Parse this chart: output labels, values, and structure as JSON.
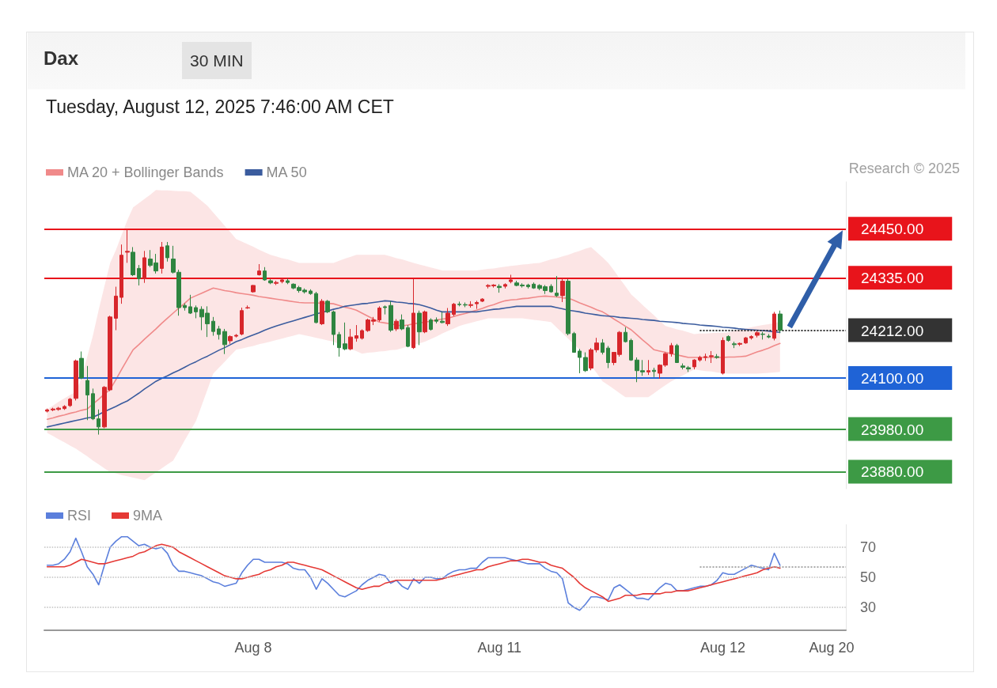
{
  "chart_data": [
    {
      "type": "candlestick",
      "title": "Dax",
      "subtitle": "Tuesday, August 12, 2025 7:46:00 AM CET",
      "annotations": [
        "30 MIN",
        "Research © 2025"
      ],
      "categories": [
        null,
        null,
        null,
        null,
        null,
        null,
        null,
        null,
        null,
        null,
        null,
        null,
        null,
        null,
        null,
        null,
        null,
        null,
        null,
        null,
        null,
        null,
        null,
        null,
        null,
        null,
        null,
        null,
        null,
        null,
        null,
        null,
        null,
        null,
        null,
        null,
        null,
        null,
        null,
        null,
        null,
        null,
        null,
        null,
        null,
        null,
        null,
        null,
        null,
        null,
        null,
        null,
        null,
        null,
        null,
        null,
        null,
        null,
        null,
        null,
        null,
        null,
        null,
        null,
        null,
        null,
        null,
        null,
        null,
        null,
        null,
        null,
        null,
        null,
        null,
        null,
        null,
        null,
        null,
        null,
        null,
        null,
        null,
        null,
        null,
        null,
        null,
        null,
        null,
        null,
        null,
        null,
        null,
        null,
        null,
        null,
        null,
        null,
        null,
        null,
        null,
        null,
        null,
        null,
        null,
        null,
        null,
        null,
        null,
        null,
        null,
        null,
        null,
        null,
        null,
        null,
        null,
        null,
        null,
        null,
        null,
        null,
        null,
        null,
        null,
        null,
        null,
        null,
        null
      ],
      "ylim": [
        23840,
        24560
      ],
      "yticks": [
        {
          "value": 24450,
          "label": "24450.00"
        },
        {
          "value": 24335,
          "label": "24335.00"
        },
        {
          "value": 24212,
          "label": "24212.00"
        },
        {
          "value": 24100,
          "label": "24100.00"
        },
        {
          "value": 23980,
          "label": "23980.00"
        },
        {
          "value": 23880,
          "label": "23880.00"
        }
      ],
      "tick_labels": "y",
      "grid": false,
      "legend": "top left",
      "ref_lines": [
        {
          "axis": "y",
          "value": 24450,
          "color": "#e8141b"
        },
        {
          "axis": "y",
          "value": 24335,
          "color": "#e8141b"
        },
        {
          "axis": "y",
          "value": 24212,
          "color": "#333333",
          "line_style": "dotted"
        },
        {
          "axis": "y",
          "value": 24100,
          "color": "#1f63d6"
        },
        {
          "axis": "y",
          "value": 23980,
          "color": "#3d9a45"
        },
        {
          "axis": "y",
          "value": 23880,
          "color": "#3d9a45"
        }
      ],
      "series": [
        {
          "type": "candlestick",
          "ohlc": [
            [
              24022,
              24028,
              24019,
              24025
            ],
            [
              24025,
              24030,
              24022,
              24027
            ],
            [
              24026,
              24032,
              24023,
              24029
            ],
            [
              24028,
              24036,
              24025,
              24033
            ],
            [
              24035,
              24053,
              24032,
              24050
            ],
            [
              24052,
              24143,
              24047,
              24140
            ],
            [
              24146,
              24162,
              24097,
              24100
            ],
            [
              24094,
              24128,
              24001,
              24060
            ],
            [
              24063,
              24075,
              24001,
              24004
            ],
            [
              24004,
              24026,
              23967,
              23985
            ],
            [
              23985,
              24081,
              23982,
              24078
            ],
            [
              24072,
              24246,
              24069,
              24243
            ],
            [
              24240,
              24314,
              24212,
              24292
            ],
            [
              24289,
              24413,
              24274,
              24388
            ],
            [
              24395,
              24450,
              24370,
              24397
            ],
            [
              24395,
              24407,
              24339,
              24342
            ],
            [
              24357,
              24365,
              24317,
              24333
            ],
            [
              24333,
              24398,
              24323,
              24382
            ],
            [
              24379,
              24400,
              24360,
              24364
            ],
            [
              24370,
              24391,
              24345,
              24351
            ],
            [
              24357,
              24419,
              24345,
              24407
            ],
            [
              24410,
              24419,
              24373,
              24382
            ],
            [
              24379,
              24410,
              24345,
              24348
            ],
            [
              24348,
              24354,
              24246,
              24265
            ],
            [
              24270,
              24275,
              24258,
              24265
            ],
            [
              24267,
              24295,
              24250,
              24252
            ],
            [
              24265,
              24270,
              24240,
              24255
            ],
            [
              24261,
              24268,
              24212,
              24243
            ],
            [
              24252,
              24268,
              24196,
              24227
            ],
            [
              24233,
              24243,
              24199,
              24209
            ],
            [
              24215,
              24222,
              24190,
              24202
            ],
            [
              24209,
              24215,
              24156,
              24178
            ],
            [
              24187,
              24200,
              24180,
              24197
            ],
            [
              24198,
              24203,
              24195,
              24200
            ],
            [
              24203,
              24265,
              24200,
              24258
            ],
            [
              24264,
              24270,
              24262,
              24265
            ],
            [
              24302,
              24318,
              24300,
              24317
            ],
            [
              24342,
              24367,
              24340,
              24351
            ],
            [
              24351,
              24360,
              24328,
              24330
            ],
            [
              24328,
              24332,
              24320,
              24323
            ],
            [
              24322,
              24328,
              24318,
              24324
            ],
            [
              24326,
              24333,
              24322,
              24330
            ],
            [
              24328,
              24333,
              24320,
              24324
            ],
            [
              24320,
              24322,
              24308,
              24311
            ],
            [
              24312,
              24316,
              24300,
              24305
            ],
            [
              24306,
              24310,
              24298,
              24302
            ],
            [
              24304,
              24308,
              24295,
              24298
            ],
            [
              24298,
              24302,
              24228,
              24230
            ],
            [
              24227,
              24285,
              24224,
              24280
            ],
            [
              24280,
              24283,
              24252,
              24255
            ],
            [
              24255,
              24258,
              24177,
              24202
            ],
            [
              24202,
              24208,
              24150,
              24171
            ],
            [
              24180,
              24230,
              24165,
              24168
            ],
            [
              24168,
              24215,
              24165,
              24196
            ],
            [
              24193,
              24224,
              24185,
              24199
            ],
            [
              24193,
              24214,
              24190,
              24211
            ],
            [
              24211,
              24239,
              24208,
              24236
            ],
            [
              24233,
              24243,
              24224,
              24236
            ],
            [
              24236,
              24268,
              24232,
              24264
            ],
            [
              24267,
              24270,
              24249,
              24265
            ],
            [
              24270,
              24280,
              24208,
              24212
            ],
            [
              24215,
              24238,
              24210,
              24233
            ],
            [
              24236,
              24249,
              24212,
              24215
            ],
            [
              24218,
              24224,
              24172,
              24174
            ],
            [
              24171,
              24332,
              24168,
              24252
            ],
            [
              24252,
              24258,
              24177,
              24208
            ],
            [
              24208,
              24258,
              24205,
              24255
            ],
            [
              24236,
              24240,
              24211,
              24214
            ],
            [
              24236,
              24242,
              24228,
              24233
            ],
            [
              24233,
              24255,
              24228,
              24230
            ],
            [
              24227,
              24264,
              24222,
              24252
            ],
            [
              24249,
              24276,
              24245,
              24273
            ],
            [
              24273,
              24279,
              24268,
              24272
            ],
            [
              24272,
              24277,
              24266,
              24271
            ],
            [
              24270,
              24280,
              24265,
              24272
            ],
            [
              24274,
              24281,
              24262,
              24277
            ],
            [
              24280,
              24287,
              24278,
              24285
            ],
            [
              24315,
              24320,
              24310,
              24317
            ],
            [
              24316,
              24320,
              24312,
              24318
            ],
            [
              24315,
              24320,
              24300,
              24312
            ],
            [
              24315,
              24322,
              24310,
              24319
            ],
            [
              24326,
              24342,
              24322,
              24330
            ],
            [
              24323,
              24328,
              24315,
              24317
            ],
            [
              24318,
              24322,
              24312,
              24316
            ],
            [
              24318,
              24321,
              24310,
              24314
            ],
            [
              24320,
              24324,
              24309,
              24311
            ],
            [
              24317,
              24320,
              24306,
              24310
            ],
            [
              24314,
              24318,
              24297,
              24305
            ],
            [
              24315,
              24320,
              24300,
              24302
            ],
            [
              24299,
              24339,
              24290,
              24293
            ],
            [
              24293,
              24334,
              24278,
              24327
            ],
            [
              24327,
              24332,
              24200,
              24204
            ],
            [
              24204,
              24208,
              24160,
              24160
            ],
            [
              24163,
              24168,
              24111,
              24148
            ],
            [
              24148,
              24160,
              24114,
              24117
            ],
            [
              24123,
              24170,
              24118,
              24166
            ],
            [
              24166,
              24194,
              24160,
              24182
            ],
            [
              24182,
              24191,
              24155,
              24160
            ],
            [
              24170,
              24175,
              24123,
              24136
            ],
            [
              24136,
              24160,
              24130,
              24160
            ],
            [
              24155,
              24210,
              24150,
              24207
            ],
            [
              24207,
              24219,
              24183,
              24185
            ],
            [
              24188,
              24192,
              24140,
              24142
            ],
            [
              24142,
              24148,
              24090,
              24117
            ],
            [
              24117,
              24142,
              24105,
              24114
            ],
            [
              24114,
              24142,
              24107,
              24117
            ],
            [
              24118,
              24124,
              24102,
              24115
            ],
            [
              24111,
              24132,
              24098,
              24130
            ],
            [
              24130,
              24160,
              24126,
              24157
            ],
            [
              24157,
              24182,
              24150,
              24176
            ],
            [
              24176,
              24180,
              24135,
              24136
            ],
            [
              24128,
              24134,
              24120,
              24125
            ],
            [
              24124,
              24128,
              24114,
              24121
            ],
            [
              24126,
              24144,
              24120,
              24142
            ],
            [
              24142,
              24152,
              24138,
              24148
            ],
            [
              24148,
              24157,
              24140,
              24150
            ],
            [
              24150,
              24163,
              24135,
              24152
            ],
            [
              24150,
              24156,
              24145,
              24148
            ],
            [
              24111,
              24195,
              24108,
              24188
            ],
            [
              24197,
              24200,
              24185,
              24188
            ],
            [
              24180,
              24185,
              24170,
              24178
            ],
            [
              24179,
              24183,
              24175,
              24181
            ],
            [
              24182,
              24196,
              24180,
              24194
            ],
            [
              24194,
              24200,
              24190,
              24197
            ],
            [
              24200,
              24210,
              24195,
              24206
            ],
            [
              24203,
              24208,
              24190,
              24202
            ],
            [
              24198,
              24203,
              24193,
              24196
            ],
            [
              24193,
              24255,
              24188,
              24250
            ],
            [
              24250,
              24258,
              24205,
              24212
            ]
          ],
          "colors": [
            "#d7262b",
            "#d7262b",
            "#d7262b",
            "#d7262b",
            "#d7262b",
            "#d7262b",
            "#2e8540",
            "#2e8540",
            "#2e8540",
            "#2e8540",
            "#d7262b",
            "#d7262b",
            "#d7262b",
            "#d7262b",
            "#d7262b",
            "#2e8540",
            "#2e8540",
            "#d7262b",
            "#2e8540",
            "#2e8540",
            "#d7262b",
            "#2e8540",
            "#2e8540",
            "#2e8540",
            "#2e8540",
            "#2e8540",
            "#2e8540",
            "#2e8540",
            "#2e8540",
            "#2e8540",
            "#2e8540",
            "#2e8540",
            "#d7262b",
            "#d7262b",
            "#d7262b",
            "#d7262b",
            "#d7262b",
            "#d7262b",
            "#2e8540",
            "#2e8540",
            "#d7262b",
            "#d7262b",
            "#2e8540",
            "#2e8540",
            "#2e8540",
            "#2e8540",
            "#2e8540",
            "#2e8540",
            "#d7262b",
            "#2e8540",
            "#2e8540",
            "#2e8540",
            "#2e8540",
            "#d7262b",
            "#d7262b",
            "#d7262b",
            "#d7262b",
            "#d7262b",
            "#d7262b",
            "#2e8540",
            "#2e8540",
            "#d7262b",
            "#2e8540",
            "#2e8540",
            "#d7262b",
            "#2e8540",
            "#d7262b",
            "#2e8540",
            "#2e8540",
            "#2e8540",
            "#d7262b",
            "#d7262b",
            "#2e8540",
            "#2e8540",
            "#d7262b",
            "#d7262b",
            "#d7262b",
            "#d7262b",
            "#d7262b",
            "#2e8540",
            "#d7262b",
            "#d7262b",
            "#2e8540",
            "#2e8540",
            "#2e8540",
            "#2e8540",
            "#2e8540",
            "#2e8540",
            "#2e8540",
            "#2e8540",
            "#d7262b",
            "#2e8540",
            "#2e8540",
            "#2e8540",
            "#2e8540",
            "#d7262b",
            "#d7262b",
            "#2e8540",
            "#2e8540",
            "#d7262b",
            "#d7262b",
            "#2e8540",
            "#2e8540",
            "#2e8540",
            "#2e8540",
            "#d7262b",
            "#2e8540",
            "#d7262b",
            "#d7262b",
            "#d7262b",
            "#2e8540",
            "#2e8540",
            "#2e8540",
            "#d7262b",
            "#d7262b",
            "#d7262b",
            "#d7262b",
            "#2e8540",
            "#d7262b",
            "#2e8540",
            "#2e8540",
            "#d7262b",
            "#d7262b",
            "#d7262b",
            "#d7262b",
            "#2e8540",
            "#2e8540",
            "#d7262b",
            "#2e8540"
          ]
        },
        {
          "type": "line",
          "name": "MA 20 + Bollinger Bands",
          "color": "#f08a8a",
          "values": [
            24003,
            24006,
            24010,
            24013,
            24017,
            24020,
            24024,
            24027,
            24039,
            24050,
            24062,
            24073,
            24096,
            24120,
            24143,
            24166,
            24178,
            24191,
            24203,
            24215,
            24228,
            24240,
            24252,
            24264,
            24275,
            24287,
            24293,
            24299,
            24305,
            24311,
            24308,
            24305,
            24303,
            24300,
            24298,
            24296,
            24294,
            24291,
            24289,
            24287,
            24285,
            24283,
            24281,
            24279,
            24277,
            24276,
            24276,
            24276,
            24275,
            24275,
            24274,
            24270,
            24266,
            24263,
            24259,
            24252,
            24245,
            24238,
            24231,
            24229,
            24227,
            24224,
            24222,
            24224,
            24227,
            24229,
            24231,
            24233,
            24236,
            24238,
            24240,
            24244,
            24248,
            24251,
            24255,
            24259,
            24263,
            24268,
            24272,
            24277,
            24281,
            24283,
            24284,
            24286,
            24287,
            24289,
            24291,
            24292,
            24291,
            24290,
            24288,
            24287,
            24282,
            24276,
            24271,
            24266,
            24260,
            24255,
            24247,
            24238,
            24230,
            24221,
            24213,
            24201,
            24189,
            24178,
            24166,
            24163,
            24160,
            24157,
            24154,
            24151,
            24148,
            24148,
            24148,
            24148,
            24148,
            24148,
            24148,
            24149,
            24149,
            24150,
            24151,
            24156,
            24161,
            24165,
            24170,
            24176,
            24181
          ],
          "upper": [
            24027,
            24035,
            24044,
            24052,
            24060,
            24068,
            24100,
            24150,
            24200,
            24260,
            24315,
            24370,
            24400,
            24435,
            24470,
            24500,
            24510,
            24520,
            24530,
            24541,
            24540,
            24540,
            24539,
            24538,
            24538,
            24537,
            24526,
            24515,
            24504,
            24488,
            24473,
            24457,
            24442,
            24426,
            24420,
            24414,
            24408,
            24401,
            24395,
            24389,
            24385,
            24381,
            24378,
            24374,
            24370,
            24370,
            24370,
            24370,
            24370,
            24370,
            24370,
            24375,
            24380,
            24384,
            24389,
            24389,
            24389,
            24389,
            24389,
            24389,
            24385,
            24381,
            24378,
            24374,
            24370,
            24366,
            24363,
            24359,
            24356,
            24352,
            24352,
            24352,
            24352,
            24352,
            24352,
            24352,
            24354,
            24356,
            24357,
            24359,
            24361,
            24363,
            24364,
            24366,
            24367,
            24369,
            24370,
            24374,
            24378,
            24381,
            24385,
            24389,
            24394,
            24398,
            24403,
            24407,
            24395,
            24383,
            24370,
            24352,
            24333,
            24315,
            24296,
            24284,
            24271,
            24259,
            24247,
            24234,
            24222,
            24218,
            24214,
            24211,
            24207,
            24203,
            24204,
            24204,
            24205,
            24206,
            24206,
            24207,
            24210,
            24213,
            24216,
            24219,
            24222,
            24224,
            24226,
            24229,
            24231
          ],
          "lower": [
            23971,
            23964,
            23956,
            23949,
            23941,
            23934,
            23925,
            23916,
            23906,
            23897,
            23888,
            23879,
            23876,
            23872,
            23869,
            23866,
            23863,
            23860,
            23869,
            23878,
            23888,
            23897,
            23906,
            23929,
            23953,
            23976,
            23999,
            24036,
            24073,
            24110,
            24124,
            24138,
            24152,
            24166,
            24169,
            24172,
            24175,
            24179,
            24182,
            24185,
            24189,
            24192,
            24196,
            24199,
            24203,
            24200,
            24197,
            24194,
            24191,
            24188,
            24185,
            24179,
            24174,
            24168,
            24163,
            24157,
            24159,
            24160,
            24162,
            24163,
            24165,
            24166,
            24170,
            24174,
            24177,
            24181,
            24185,
            24191,
            24197,
            24204,
            24210,
            24216,
            24222,
            24226,
            24229,
            24233,
            24236,
            24240,
            24240,
            24240,
            24240,
            24240,
            24240,
            24240,
            24238,
            24236,
            24235,
            24233,
            24231,
            24218,
            24205,
            24192,
            24179,
            24166,
            24148,
            24129,
            24111,
            24092,
            24083,
            24074,
            24064,
            24055,
            24055,
            24055,
            24055,
            24055,
            24064,
            24074,
            24083,
            24092,
            24099,
            24106,
            24113,
            24120,
            24118,
            24116,
            24115,
            24113,
            24111,
            24110,
            24110,
            24110,
            24110,
            24110,
            24110,
            24111,
            24112,
            24113,
            24114
          ]
        },
        {
          "type": "line",
          "name": "MA 50",
          "color": "#3b5c9e",
          "values": [
            23985,
            23988,
            23991,
            23994,
            23997,
            24000,
            24003,
            24006,
            24008,
            24014,
            24021,
            24027,
            24033,
            24040,
            24046,
            24055,
            24064,
            24074,
            24083,
            24092,
            24099,
            24105,
            24112,
            24118,
            24125,
            24132,
            24138,
            24145,
            24151,
            24158,
            24165,
            24171,
            24178,
            24185,
            24190,
            24196,
            24201,
            24206,
            24212,
            24217,
            24222,
            24226,
            24230,
            24234,
            24238,
            24242,
            24246,
            24250,
            24254,
            24257,
            24261,
            24264,
            24268,
            24270,
            24272,
            24274,
            24275,
            24277,
            24279,
            24281,
            24280,
            24278,
            24277,
            24275,
            24274,
            24272,
            24268,
            24264,
            24259,
            24255,
            24255,
            24255,
            24255,
            24255,
            24255,
            24255,
            24257,
            24259,
            24261,
            24262,
            24264,
            24266,
            24268,
            24268,
            24268,
            24268,
            24268,
            24268,
            24268,
            24265,
            24262,
            24259,
            24257,
            24255,
            24252,
            24250,
            24248,
            24246,
            24245,
            24244,
            24242,
            24241,
            24240,
            24239,
            24237,
            24236,
            24235,
            24233,
            24232,
            24231,
            24230,
            24228,
            24227,
            24226,
            24224,
            24223,
            24222,
            24221,
            24219,
            24218,
            24217,
            24215,
            24214,
            24213,
            24212,
            24211,
            24210,
            24208,
            24207
          ]
        }
      ]
    },
    {
      "type": "line",
      "categories": [
        null,
        null,
        null,
        null,
        null,
        null,
        null,
        null,
        null,
        null,
        null,
        null,
        null,
        null,
        null,
        null,
        null,
        null,
        null,
        null,
        null,
        null,
        null,
        null,
        null,
        null,
        null,
        null,
        null,
        null,
        null,
        null,
        null,
        null,
        null,
        null,
        "Aug 8",
        null,
        null,
        null,
        null,
        null,
        null,
        null,
        null,
        null,
        null,
        null,
        null,
        null,
        null,
        null,
        null,
        null,
        null,
        null,
        null,
        null,
        null,
        null,
        null,
        null,
        null,
        null,
        null,
        null,
        null,
        null,
        null,
        null,
        null,
        null,
        null,
        null,
        null,
        null,
        null,
        null,
        null,
        "Aug 11",
        null,
        null,
        null,
        null,
        null,
        null,
        null,
        null,
        null,
        null,
        null,
        null,
        null,
        null,
        null,
        null,
        null,
        null,
        null,
        null,
        null,
        null,
        null,
        null,
        null,
        null,
        null,
        null,
        null,
        null,
        null,
        null,
        null,
        null,
        null,
        null,
        null,
        null,
        "Aug 12",
        null,
        null,
        null,
        null,
        null,
        null,
        null,
        null,
        null,
        null,
        null,
        null,
        null,
        null,
        null,
        null,
        null,
        null,
        "Aug 20",
        null,
        null
      ],
      "ylim": [
        15,
        85
      ],
      "yticks": [
        30,
        50,
        70
      ],
      "grid": "y",
      "legend": "top left",
      "ref_lines": [
        {
          "axis": "y",
          "value": 56.8,
          "color": "#aaaaaa",
          "line_style": "dotted"
        }
      ],
      "series": [
        {
          "name": "RSI",
          "color": "#5b7fdc",
          "values": [
            58,
            58,
            59,
            62,
            67,
            76,
            67,
            57,
            52,
            45,
            58,
            70,
            74,
            77,
            77,
            74,
            71,
            72,
            70,
            69,
            70,
            66,
            58,
            54,
            54,
            53,
            52,
            51,
            49,
            47,
            46,
            44,
            45,
            46,
            53,
            58,
            62,
            62,
            60,
            60,
            60,
            60,
            59,
            56,
            55,
            55,
            50,
            42,
            49,
            46,
            42,
            38,
            37,
            39,
            41,
            45,
            48,
            50,
            52,
            51,
            46,
            48,
            44,
            42,
            49,
            46,
            50,
            50,
            49,
            49,
            52,
            54,
            55,
            55,
            56,
            56,
            60,
            63,
            63,
            63,
            63,
            62,
            61,
            60,
            59,
            59,
            59,
            56,
            54,
            53,
            49,
            33,
            30,
            28,
            32,
            37,
            37,
            36,
            35,
            43,
            45,
            42,
            39,
            36,
            36,
            35,
            39,
            43,
            46,
            45,
            41,
            41,
            42,
            43,
            44,
            44,
            45,
            48,
            53,
            52,
            52,
            54,
            56,
            58,
            57,
            56,
            55,
            66,
            58,
            null,
            null,
            null,
            null,
            null,
            null,
            null,
            null,
            null,
            null,
            null
          ]
        },
        {
          "name": "9MA",
          "color": "#e53935",
          "values": [
            57,
            57,
            57,
            57,
            58,
            60,
            62,
            61,
            60,
            59,
            59,
            60,
            61,
            62,
            63,
            64,
            66,
            67,
            69,
            71,
            72,
            71,
            70,
            67,
            65,
            63,
            61,
            59,
            57,
            55,
            53,
            51,
            50,
            49,
            49,
            50,
            51,
            52,
            54,
            55,
            57,
            58,
            60,
            60,
            59,
            58,
            57,
            56,
            55,
            53,
            51,
            49,
            47,
            45,
            43,
            42,
            43,
            44,
            44,
            46,
            47,
            48,
            48,
            48,
            48,
            48,
            48,
            48,
            48,
            49,
            50,
            51,
            52,
            53,
            54,
            55,
            55,
            57,
            58,
            59,
            60,
            61,
            61,
            62,
            62,
            61,
            60,
            60,
            58,
            57,
            56,
            53,
            50,
            46,
            43,
            41,
            39,
            37,
            34,
            35,
            36,
            38,
            38,
            38,
            39,
            39,
            39,
            39,
            40,
            40,
            41,
            41,
            41,
            42,
            43,
            44,
            45,
            46,
            47,
            48,
            49,
            50,
            51,
            52,
            53,
            55,
            56,
            57,
            56,
            null,
            null,
            null,
            null,
            null,
            null,
            null,
            null,
            null,
            null,
            null
          ]
        }
      ]
    }
  ]
}
